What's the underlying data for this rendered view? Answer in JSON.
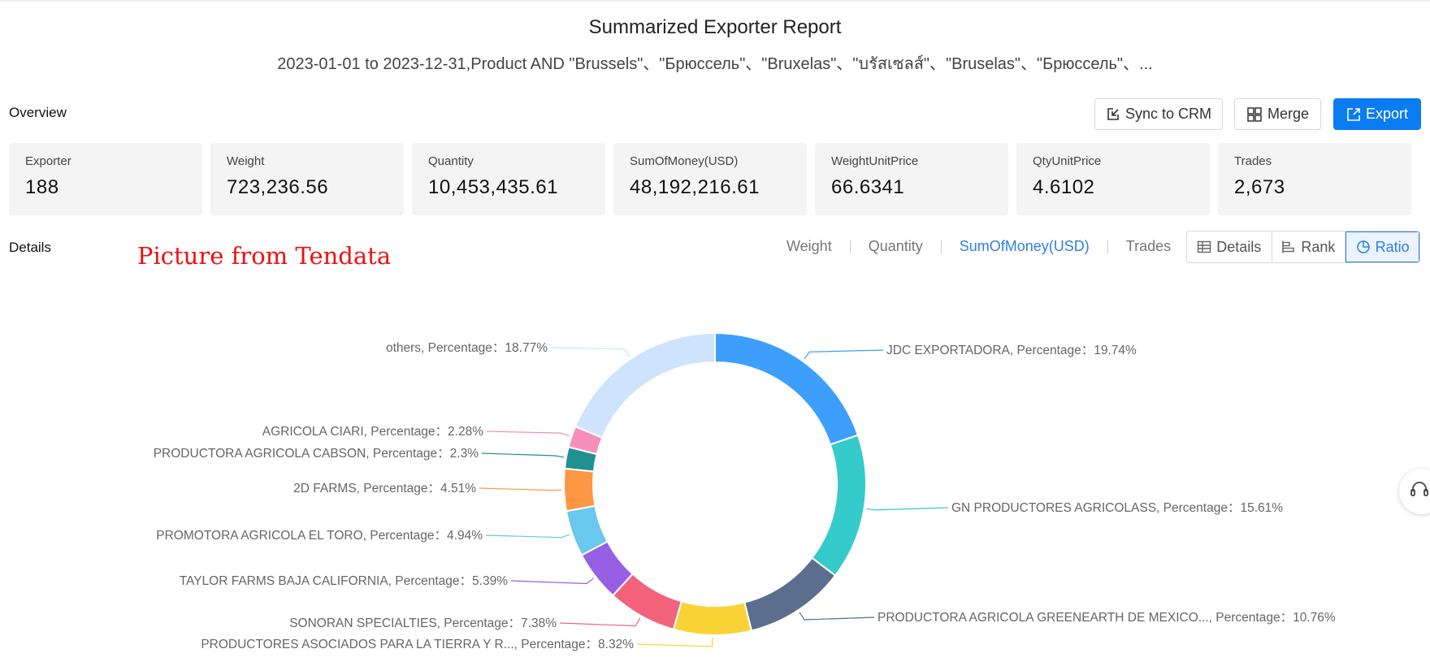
{
  "report": {
    "title": "Summarized Exporter Report",
    "subtitle": "2023-01-01 to 2023-12-31,Product AND \"Brussels\"、\"Брюссель\"、\"Bruxelas\"、\"บรัสเซลส์\"、\"Bruselas\"、\"Брюссель\"、..."
  },
  "overview": {
    "label": "Overview",
    "buttons": {
      "sync": "Sync to CRM",
      "merge": "Merge",
      "export": "Export"
    },
    "cards": [
      {
        "label": "Exporter",
        "value": "188"
      },
      {
        "label": "Weight",
        "value": "723,236.56"
      },
      {
        "label": "Quantity",
        "value": "10,453,435.61"
      },
      {
        "label": "SumOfMoney(USD)",
        "value": "48,192,216.61"
      },
      {
        "label": "WeightUnitPrice",
        "value": "66.6341"
      },
      {
        "label": "QtyUnitPrice",
        "value": "4.6102"
      },
      {
        "label": "Trades",
        "value": "2,673"
      }
    ]
  },
  "details": {
    "label": "Details",
    "watermark": "Picture from Tendata",
    "metric_tabs": [
      "Weight",
      "Quantity",
      "SumOfMoney(USD)",
      "Trades"
    ],
    "active_metric": "SumOfMoney(USD)",
    "views": [
      "Details",
      "Rank",
      "Ratio"
    ],
    "active_view": "Ratio"
  },
  "colors": {
    "accent": "#0a7cf2",
    "active_tab": "#2f80e6",
    "watermark": "#ee1111"
  },
  "chart_data": {
    "type": "pie",
    "subtype": "donut",
    "label_format": "{name}, Percentage：{value}%",
    "slices": [
      {
        "name": "JDC EXPORTADORA",
        "value": 19.74,
        "color": "#3d9ffb"
      },
      {
        "name": "GN PRODUCTORES AGRICOLASS",
        "value": 15.61,
        "color": "#35cbcb"
      },
      {
        "name": "PRODUCTORA AGRICOLA GREENEARTH DE MEXICO...",
        "value": 10.76,
        "color": "#5b6e8e"
      },
      {
        "name": "PRODUCTORES ASOCIADOS PARA LA TIERRA Y R...",
        "value": 8.32,
        "color": "#fad337"
      },
      {
        "name": "SONORAN SPECIALTIES",
        "value": 7.38,
        "color": "#f2637b"
      },
      {
        "name": "TAYLOR FARMS BAJA CALIFORNIA",
        "value": 5.39,
        "color": "#975fe4"
      },
      {
        "name": "PROMOTORA AGRICOLA EL TORO",
        "value": 4.94,
        "color": "#6ac7ee"
      },
      {
        "name": "2D FARMS",
        "value": 4.51,
        "color": "#fd9744"
      },
      {
        "name": "PRODUCTORA AGRICOLA CABSON",
        "value": 2.3,
        "color": "#1f9190"
      },
      {
        "name": "AGRICOLA CIARI",
        "value": 2.28,
        "color": "#f68fb8"
      },
      {
        "name": "others",
        "value": 18.77,
        "color": "#cde4fc"
      }
    ]
  }
}
